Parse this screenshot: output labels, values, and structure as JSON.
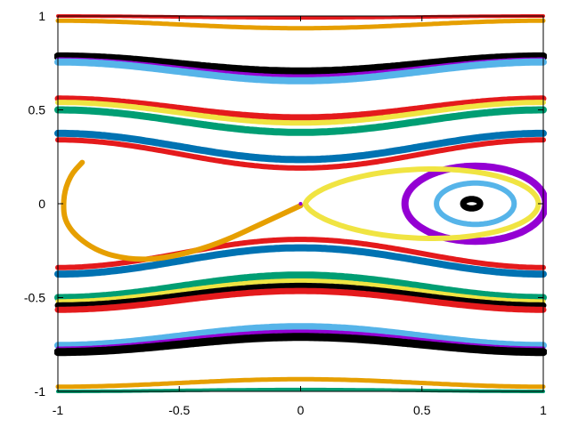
{
  "chart_data": {
    "type": "line",
    "title": "",
    "xlabel": "",
    "ylabel": "",
    "xlim": [
      -1,
      1
    ],
    "ylim": [
      -1,
      1
    ],
    "xticks": [
      "-1",
      "-0.5",
      "0",
      "0.5",
      "1"
    ],
    "yticks": [
      "1",
      "0.5",
      "0",
      "-0.5",
      "-1"
    ],
    "grid": false,
    "legend": "none",
    "colors": {
      "black": "#000000",
      "red": "#e41a1c",
      "blue": "#0072b2",
      "lightblue": "#56b4e9",
      "green": "#009e73",
      "yellow": "#f0e442",
      "orange": "#e69f00",
      "purple": "#9400d3"
    },
    "series": [
      {
        "kind": "wave",
        "color": "#e41a1c",
        "y0": 0.995,
        "amp": 0.005,
        "width": 4,
        "sign": 1
      },
      {
        "kind": "wave",
        "color": "#e69f00",
        "y0": 0.955,
        "amp": 0.02,
        "width": 5,
        "sign": 1
      },
      {
        "kind": "wave",
        "color": "#000000",
        "y0": 0.745,
        "amp": 0.04,
        "width": 9,
        "sign": 1
      },
      {
        "kind": "wave",
        "color": "#9400d3",
        "y0": 0.725,
        "amp": 0.045,
        "width": 4,
        "sign": 1
      },
      {
        "kind": "wave",
        "color": "#56b4e9",
        "y0": 0.705,
        "amp": 0.05,
        "width": 8,
        "sign": 1
      },
      {
        "kind": "wave",
        "color": "#e41a1c",
        "y0": 0.51,
        "amp": 0.05,
        "width": 7,
        "sign": 1
      },
      {
        "kind": "wave",
        "color": "#f0e442",
        "y0": 0.485,
        "amp": 0.055,
        "width": 6,
        "sign": 1
      },
      {
        "kind": "wave",
        "color": "#009e73",
        "y0": 0.44,
        "amp": 0.06,
        "width": 8,
        "sign": 1
      },
      {
        "kind": "wave",
        "color": "#0072b2",
        "y0": 0.305,
        "amp": 0.07,
        "width": 8,
        "sign": 1
      },
      {
        "kind": "wave",
        "color": "#e41a1c",
        "y0": 0.265,
        "amp": 0.075,
        "width": 6,
        "sign": 1
      },
      {
        "kind": "wave",
        "color": "#e41a1c",
        "y0": -0.265,
        "amp": 0.075,
        "width": 6,
        "sign": -1
      },
      {
        "kind": "wave",
        "color": "#0072b2",
        "y0": -0.305,
        "amp": 0.07,
        "width": 8,
        "sign": -1
      },
      {
        "kind": "wave",
        "color": "#009e73",
        "y0": -0.44,
        "amp": 0.06,
        "width": 8,
        "sign": -1
      },
      {
        "kind": "wave",
        "color": "#f0e442",
        "y0": -0.465,
        "amp": 0.055,
        "width": 5,
        "sign": -1
      },
      {
        "kind": "wave",
        "color": "#000000",
        "y0": -0.49,
        "amp": 0.052,
        "width": 7,
        "sign": -1
      },
      {
        "kind": "wave",
        "color": "#e41a1c",
        "y0": -0.515,
        "amp": 0.05,
        "width": 7,
        "sign": -1
      },
      {
        "kind": "wave",
        "color": "#56b4e9",
        "y0": -0.705,
        "amp": 0.05,
        "width": 8,
        "sign": -1
      },
      {
        "kind": "wave",
        "color": "#9400d3",
        "y0": -0.725,
        "amp": 0.045,
        "width": 4,
        "sign": -1
      },
      {
        "kind": "wave",
        "color": "#000000",
        "y0": -0.75,
        "amp": 0.04,
        "width": 9,
        "sign": -1
      },
      {
        "kind": "wave",
        "color": "#e69f00",
        "y0": -0.955,
        "amp": 0.02,
        "width": 5,
        "sign": -1
      },
      {
        "kind": "wave",
        "color": "#009e73",
        "y0": -0.995,
        "amp": 0.005,
        "width": 4,
        "sign": -1
      },
      {
        "kind": "loop",
        "color": "#000000",
        "cx": 0.705,
        "cy": 0,
        "rx": 0.035,
        "ry": 0.025,
        "width": 7
      },
      {
        "kind": "loop",
        "color": "#56b4e9",
        "cx": 0.72,
        "cy": 0,
        "rx": 0.16,
        "ry": 0.11,
        "width": 6
      },
      {
        "kind": "loop",
        "color": "#9400d3",
        "cx": 0.72,
        "cy": 0,
        "rx": 0.29,
        "ry": 0.2,
        "width": 8
      },
      {
        "kind": "separatrix",
        "color": "#f0e442",
        "width": 6
      },
      {
        "kind": "homoclinic",
        "color": "#e69f00",
        "width": 6
      }
    ]
  }
}
